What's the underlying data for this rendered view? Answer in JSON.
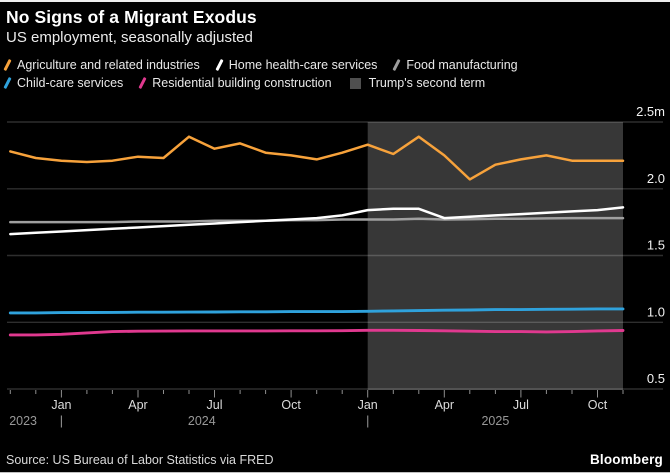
{
  "header": {
    "title": "No Signs of a Migrant Exodus",
    "subtitle": "US employment, seasonally adjusted"
  },
  "legend": {
    "items": [
      {
        "label": "Agriculture and related industries",
        "color": "#f7a23b",
        "marker": "slash"
      },
      {
        "label": "Home health-care services",
        "color": "#ffffff",
        "marker": "slash"
      },
      {
        "label": "Food manufacturing",
        "color": "#9d9d9d",
        "marker": "slash"
      },
      {
        "label": "Child-care services",
        "color": "#2fa2dc",
        "marker": "slash"
      },
      {
        "label": "Residential building construction",
        "color": "#e0398f",
        "marker": "slash"
      },
      {
        "label": "Trump's second term",
        "color": "#4f4f4f",
        "marker": "square"
      }
    ]
  },
  "chart_data": {
    "type": "line",
    "title": "No Signs of a Migrant Exodus",
    "subtitle": "US employment, seasonally adjusted",
    "unit": "millions of employees",
    "grid": "horizontal",
    "legend_position": "top",
    "x": [
      "Nov 2023",
      "Dec 2023",
      "Jan 2024",
      "Feb 2024",
      "Mar 2024",
      "Apr 2024",
      "May 2024",
      "Jun 2024",
      "Jul 2024",
      "Aug 2024",
      "Sep 2024",
      "Oct 2024",
      "Nov 2024",
      "Dec 2024",
      "Jan 2025",
      "Feb 2025",
      "Mar 2025",
      "Apr 2025",
      "May 2025",
      "Jun 2025",
      "Jul 2025",
      "Aug 2025",
      "Sep 2025",
      "Oct 2025",
      "Nov 2025"
    ],
    "series": [
      {
        "name": "Agriculture and related industries",
        "color": "#f7a23b",
        "values": [
          2.28,
          2.23,
          2.21,
          2.2,
          2.21,
          2.24,
          2.23,
          2.39,
          2.3,
          2.34,
          2.27,
          2.25,
          2.22,
          2.27,
          2.33,
          2.26,
          2.39,
          2.25,
          2.07,
          2.18,
          2.22,
          2.25,
          2.21,
          2.21,
          2.21
        ]
      },
      {
        "name": "Home health-care services",
        "color": "#ffffff",
        "values": [
          1.66,
          1.67,
          1.68,
          1.69,
          1.7,
          1.71,
          1.72,
          1.73,
          1.74,
          1.75,
          1.76,
          1.77,
          1.78,
          1.8,
          1.84,
          1.85,
          1.85,
          1.78,
          1.79,
          1.8,
          1.81,
          1.82,
          1.83,
          1.84,
          1.86
        ]
      },
      {
        "name": "Food manufacturing",
        "color": "#a0a0a0",
        "values": [
          1.75,
          1.75,
          1.75,
          1.75,
          1.75,
          1.755,
          1.755,
          1.755,
          1.76,
          1.76,
          1.76,
          1.765,
          1.765,
          1.77,
          1.77,
          1.77,
          1.775,
          1.77,
          1.772,
          1.775,
          1.775,
          1.778,
          1.78,
          1.78,
          1.78
        ]
      },
      {
        "name": "Child-care services",
        "color": "#2fa2dc",
        "values": [
          1.07,
          1.07,
          1.072,
          1.073,
          1.074,
          1.075,
          1.075,
          1.076,
          1.077,
          1.078,
          1.078,
          1.08,
          1.08,
          1.08,
          1.082,
          1.085,
          1.087,
          1.09,
          1.092,
          1.095,
          1.095,
          1.097,
          1.098,
          1.1,
          1.1
        ]
      },
      {
        "name": "Residential building construction",
        "color": "#e0398f",
        "values": [
          0.905,
          0.905,
          0.91,
          0.92,
          0.93,
          0.933,
          0.934,
          0.935,
          0.935,
          0.935,
          0.935,
          0.936,
          0.936,
          0.937,
          0.94,
          0.94,
          0.938,
          0.936,
          0.933,
          0.93,
          0.93,
          0.928,
          0.93,
          0.935,
          0.938
        ]
      }
    ],
    "shaded_region": {
      "label": "Trump's second term",
      "start": "Jan 2025",
      "end": "Nov 2025",
      "color": "#383838"
    },
    "y_axis": {
      "min": 0.5,
      "max": 2.5,
      "tick_values": [
        2.5,
        2.0,
        1.5,
        1.0,
        0.5
      ],
      "tick_labels": [
        "2.5m",
        "2.0",
        "1.5",
        "1.0",
        "0.5"
      ]
    },
    "x_axis": {
      "quarter_tick_labels": [
        "Jan",
        "Apr",
        "Jul",
        "Oct",
        "Jan",
        "Apr",
        "Jul",
        "Oct"
      ],
      "year_labels": [
        "2023",
        "2024",
        "2025"
      ],
      "year_separator": "|"
    }
  },
  "footer": {
    "source": "Source: US Bureau of Labor Statistics via FRED",
    "brand": "Bloomberg"
  }
}
